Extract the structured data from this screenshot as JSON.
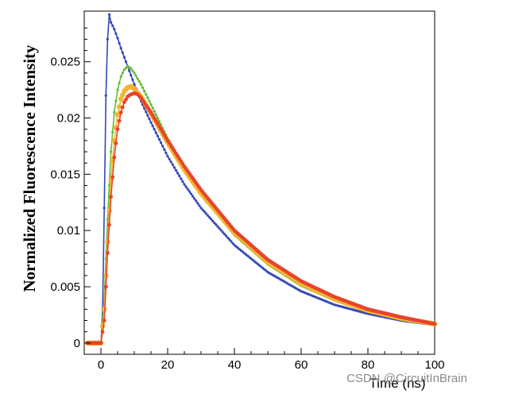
{
  "chart_data": {
    "type": "line",
    "title": "",
    "xlabel": "Time (ns)",
    "ylabel": "Normalized Fluorescence Intensity",
    "xlim": [
      -5,
      100
    ],
    "ylim": [
      -0.001,
      0.0295
    ],
    "xticks": [
      0,
      20,
      40,
      60,
      80,
      100
    ],
    "xtick_labels": [
      "0",
      "20",
      "40",
      "60",
      "80",
      "100"
    ],
    "yticks": [
      0,
      0.005,
      0.01,
      0.015,
      0.02,
      0.025
    ],
    "ytick_labels": [
      "0",
      "0.005",
      "0.01",
      "0.015",
      "0.02",
      "0.025"
    ],
    "grid": false,
    "legend": "none",
    "series": [
      {
        "color": "#3349b6",
        "x": [
          -4,
          0,
          0.5,
          1,
          1.5,
          2,
          2.5,
          3,
          4,
          5,
          6,
          8,
          10,
          12,
          15,
          20,
          25,
          30,
          40,
          50,
          60,
          70,
          80,
          90,
          100
        ],
        "y": [
          0,
          0,
          0.003,
          0.012,
          0.022,
          0.027,
          0.0292,
          0.0285,
          0.0279,
          0.0271,
          0.0262,
          0.0246,
          0.023,
          0.0215,
          0.0196,
          0.0166,
          0.0141,
          0.012,
          0.0087,
          0.0063,
          0.0046,
          0.0034,
          0.0026,
          0.002,
          0.0016
        ]
      },
      {
        "color": "#66bb3a",
        "x": [
          -4,
          0,
          1,
          2,
          3,
          4,
          5,
          6,
          7,
          8,
          9,
          10,
          12,
          15,
          20,
          25,
          30,
          40,
          50,
          60,
          70,
          80,
          90,
          100
        ],
        "y": [
          0,
          0,
          0.004,
          0.011,
          0.017,
          0.0205,
          0.0225,
          0.0237,
          0.0243,
          0.0246,
          0.0244,
          0.024,
          0.023,
          0.0212,
          0.0182,
          0.0156,
          0.0133,
          0.0096,
          0.007,
          0.0051,
          0.0038,
          0.0029,
          0.0022,
          0.0017
        ]
      },
      {
        "color": "#f2b531",
        "x": [
          -4,
          0,
          1,
          2,
          3,
          4,
          5,
          6,
          7,
          8,
          9,
          10,
          12,
          15,
          20,
          25,
          30,
          40,
          50,
          60,
          70,
          80,
          90,
          100
        ],
        "y": [
          0,
          0,
          0.003,
          0.009,
          0.0145,
          0.018,
          0.0203,
          0.0217,
          0.0224,
          0.0227,
          0.0228,
          0.0226,
          0.0219,
          0.0204,
          0.0178,
          0.0154,
          0.0133,
          0.0098,
          0.0072,
          0.0053,
          0.0039,
          0.0029,
          0.0022,
          0.0017
        ]
      },
      {
        "color": "#e8432b",
        "x": [
          -4,
          0,
          1,
          2,
          3,
          4,
          5,
          6,
          7,
          8,
          9,
          10,
          11,
          12,
          15,
          20,
          25,
          30,
          40,
          50,
          60,
          70,
          80,
          90,
          100
        ],
        "y": [
          0,
          0,
          0.002,
          0.008,
          0.013,
          0.0165,
          0.019,
          0.0205,
          0.0214,
          0.0219,
          0.0221,
          0.0222,
          0.0221,
          0.0218,
          0.0205,
          0.018,
          0.0157,
          0.0136,
          0.01,
          0.0074,
          0.0055,
          0.0041,
          0.003,
          0.0023,
          0.0017
        ]
      }
    ]
  },
  "watermark": "CSDN @CircuitInBrain"
}
